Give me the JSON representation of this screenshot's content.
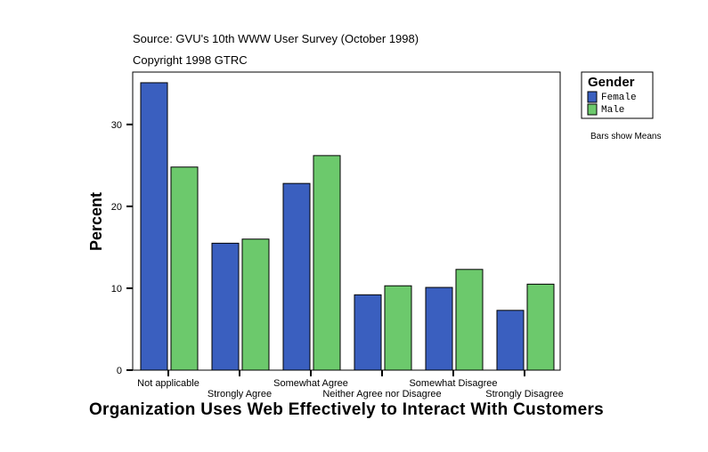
{
  "chart_data": {
    "type": "bar",
    "source": "Source: GVU's 10th WWW User Survey (October 1998)",
    "copyright": "Copyright 1998 GTRC",
    "xlabel": "Organization Uses Web Effectively to Interact With Customers",
    "ylabel": "Percent",
    "ylim": [
      0,
      36.4
    ],
    "yticks": [
      0,
      10,
      20,
      30
    ],
    "categories": [
      "Not applicable",
      "Strongly Agree",
      "Somewhat Agree",
      "Neither Agree nor Disagree",
      "Somewhat Disagree",
      "Strongly Disagree"
    ],
    "series": [
      {
        "name": "Female",
        "color": "#3a5fbf",
        "values": [
          35.1,
          15.5,
          22.8,
          9.2,
          10.1,
          7.3
        ]
      },
      {
        "name": "Male",
        "color": "#6cc96c",
        "values": [
          24.8,
          16.0,
          26.2,
          10.3,
          12.3,
          10.5
        ]
      }
    ],
    "legend": {
      "title": "Gender",
      "position": "top-right"
    },
    "note": "Bars show Means",
    "grid": false
  }
}
